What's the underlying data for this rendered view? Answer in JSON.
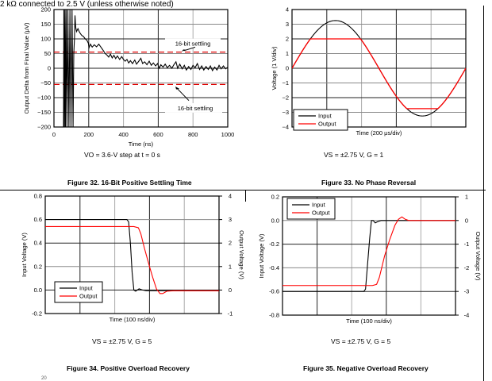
{
  "page": {
    "header_text": "2 kΩ connected to 2.5 V (unless otherwise noted)",
    "page_number": "20",
    "colors": {
      "input": "#000000",
      "output": "#ff0000",
      "limit": "#e00000",
      "grid": "#999999"
    }
  },
  "figures": [
    {
      "caption": "Figure 32. 16-Bit Positive Settling Time",
      "condition": "VO = 3.6-V step at t = 0 s"
    },
    {
      "caption": "Figure 33. No Phase Reversal",
      "condition": "VS = ±2.75 V, G = 1"
    },
    {
      "caption": "Figure 34. Positive Overload Recovery",
      "condition": "VS = ±2.75 V, G = 5"
    },
    {
      "caption": "Figure 35. Negative Overload Recovery",
      "condition": "VS = ±2.75 V, G = 5"
    }
  ],
  "chart_data": [
    {
      "type": "line",
      "xlabel": "Time (ns)",
      "ylabel": "Output Delta from Final Value (μV)",
      "xlim": [
        0,
        1000
      ],
      "ylim": [
        -200,
        200
      ],
      "xticks": [
        "0",
        "200",
        "400",
        "600",
        "800",
        "1000"
      ],
      "yticks": [
        "200",
        "150",
        "100",
        "50",
        "0",
        "−50",
        "−100",
        "−150",
        "−200"
      ],
      "grid": true,
      "annotations": [
        {
          "text": "16-bit settling",
          "y": 55
        },
        {
          "text": "16-bit settling",
          "y": -55
        }
      ],
      "limit_lines": [
        55,
        -55
      ],
      "series": [
        {
          "color": "#000000",
          "points": [
            [
              55,
              -200
            ],
            [
              57,
              200
            ],
            [
              60,
              -200
            ],
            [
              63,
              200
            ],
            [
              66,
              -200
            ],
            [
              70,
              200
            ],
            [
              75,
              -200
            ],
            [
              80,
              200
            ],
            [
              86,
              -200
            ],
            [
              92,
              200
            ],
            [
              98,
              -200
            ],
            [
              104,
              200
            ],
            [
              110,
              -200
            ],
            [
              114,
              50
            ],
            [
              118,
              100
            ],
            [
              121,
              180
            ],
            [
              125,
              140
            ],
            [
              130,
              125
            ],
            [
              138,
              135
            ],
            [
              145,
              125
            ],
            [
              152,
              118
            ],
            [
              160,
              112
            ],
            [
              170,
              108
            ],
            [
              180,
              100
            ],
            [
              190,
              95
            ],
            [
              198,
              85
            ],
            [
              202,
              70
            ],
            [
              210,
              82
            ],
            [
              220,
              72
            ],
            [
              232,
              80
            ],
            [
              245,
              73
            ],
            [
              258,
              82
            ],
            [
              270,
              72
            ],
            [
              282,
              62
            ],
            [
              295,
              50
            ],
            [
              305,
              45
            ],
            [
              315,
              38
            ],
            [
              325,
              48
            ],
            [
              335,
              35
            ],
            [
              345,
              44
            ],
            [
              355,
              33
            ],
            [
              365,
              42
            ],
            [
              378,
              30
            ],
            [
              390,
              40
            ],
            [
              400,
              30
            ],
            [
              410,
              24
            ],
            [
              420,
              30
            ],
            [
              430,
              18
            ],
            [
              440,
              26
            ],
            [
              452,
              16
            ],
            [
              465,
              28
            ],
            [
              475,
              14
            ],
            [
              488,
              24
            ],
            [
              500,
              34
            ],
            [
              510,
              16
            ],
            [
              522,
              22
            ],
            [
              535,
              12
            ],
            [
              548,
              24
            ],
            [
              560,
              10
            ],
            [
              572,
              18
            ],
            [
              585,
              8
            ],
            [
              596,
              16
            ],
            [
              606,
              0
            ],
            [
              615,
              12
            ],
            [
              628,
              4
            ],
            [
              640,
              14
            ],
            [
              652,
              2
            ],
            [
              665,
              10
            ],
            [
              678,
              0
            ],
            [
              690,
              12
            ],
            [
              702,
              22
            ],
            [
              712,
              0
            ],
            [
              724,
              14
            ],
            [
              738,
              -2
            ],
            [
              750,
              10
            ],
            [
              762,
              -6
            ],
            [
              775,
              6
            ],
            [
              788,
              -4
            ],
            [
              800,
              10
            ],
            [
              812,
              2
            ],
            [
              825,
              16
            ],
            [
              838,
              -4
            ],
            [
              850,
              8
            ],
            [
              862,
              -6
            ],
            [
              875,
              6
            ],
            [
              888,
              -4
            ],
            [
              900,
              8
            ],
            [
              912,
              -8
            ],
            [
              925,
              4
            ],
            [
              938,
              -6
            ],
            [
              950,
              10
            ],
            [
              962,
              -2
            ],
            [
              975,
              8
            ],
            [
              988,
              -2
            ],
            [
              1000,
              4
            ]
          ]
        }
      ]
    },
    {
      "type": "line",
      "xlabel": "Time (200 μs/div)",
      "ylabel": "Voltage (1 V/div)",
      "xlim": [
        0,
        5
      ],
      "ylim": [
        -4,
        4
      ],
      "yticks": [
        "4",
        "3",
        "2",
        "1",
        "0",
        "−1",
        "−2",
        "−3",
        "−4"
      ],
      "grid": true,
      "legend": {
        "placement": "bottom-left",
        "entries": [
          "Input",
          "Output"
        ]
      },
      "series": [
        {
          "name": "Input",
          "color": "#000000",
          "function": "sine",
          "amplitude": 3.25,
          "period_div": 5
        },
        {
          "name": "Output",
          "color": "#ff0000",
          "function": "sine",
          "amplitude": 3.25,
          "period_div": 5,
          "clip_high": 2.0,
          "clip_low": -2.75
        }
      ]
    },
    {
      "type": "line",
      "xlabel": "Time (100 ns/div)",
      "ylabel": "Input Voltage (V)",
      "ylabel_right": "Output Voltage (V)",
      "xlim": [
        0,
        5
      ],
      "ylim": [
        -0.2,
        0.8
      ],
      "ylim_right": [
        -1,
        4
      ],
      "yticks": [
        "0.8",
        "0.6",
        "0.4",
        "0.2",
        "0.0",
        "-0.2"
      ],
      "yticks_right": [
        "4",
        "3",
        "2",
        "1",
        "0",
        "-1"
      ],
      "grid": true,
      "legend": {
        "placement": "bottom-left",
        "entries": [
          "Input",
          "Output"
        ]
      },
      "series": [
        {
          "name": "Input",
          "color": "#000000",
          "axis": "left",
          "points": [
            [
              0,
              0.6
            ],
            [
              2.35,
              0.6
            ],
            [
              2.4,
              0.58
            ],
            [
              2.45,
              0.4
            ],
            [
              2.5,
              0.15
            ],
            [
              2.55,
              0.0
            ],
            [
              2.6,
              -0.01
            ],
            [
              2.7,
              0.01
            ],
            [
              2.8,
              0.0
            ],
            [
              2.9,
              -0.005
            ],
            [
              5,
              -0.005
            ]
          ]
        },
        {
          "name": "Output",
          "color": "#ff0000",
          "axis": "right",
          "points": [
            [
              0,
              2.7
            ],
            [
              2.55,
              2.7
            ],
            [
              2.68,
              2.65
            ],
            [
              2.75,
              2.4
            ],
            [
              2.85,
              1.8
            ],
            [
              3.0,
              1.0
            ],
            [
              3.1,
              0.5
            ],
            [
              3.2,
              0.05
            ],
            [
              3.3,
              -0.15
            ],
            [
              3.38,
              -0.15
            ],
            [
              3.5,
              -0.05
            ],
            [
              3.7,
              -0.03
            ],
            [
              5,
              -0.03
            ]
          ]
        }
      ]
    },
    {
      "type": "line",
      "xlabel": "Time (100 ns/div)",
      "ylabel": "Input Voltage (V)",
      "ylabel_right": "Output Voltage (V)",
      "xlim": [
        0,
        5
      ],
      "ylim": [
        -0.8,
        0.2
      ],
      "ylim_right": [
        -4,
        1
      ],
      "yticks": [
        "0.2",
        "0.0",
        "-0.2",
        "-0.4",
        "-0.6",
        "-0.8"
      ],
      "yticks_right": [
        "1",
        "0",
        "-1",
        "-2",
        "-3",
        "-4"
      ],
      "grid": true,
      "legend": {
        "placement": "top-left",
        "entries": [
          "Input",
          "Output"
        ]
      },
      "series": [
        {
          "name": "Input",
          "color": "#000000",
          "axis": "left",
          "points": [
            [
              0,
              -0.6
            ],
            [
              2.35,
              -0.6
            ],
            [
              2.4,
              -0.58
            ],
            [
              2.45,
              -0.4
            ],
            [
              2.52,
              -0.15
            ],
            [
              2.57,
              0.0
            ],
            [
              2.62,
              0.0
            ],
            [
              2.68,
              -0.02
            ],
            [
              2.75,
              -0.01
            ],
            [
              2.85,
              0.0
            ],
            [
              5,
              0.0
            ]
          ]
        },
        {
          "name": "Output",
          "color": "#ff0000",
          "axis": "right",
          "points": [
            [
              0,
              -2.75
            ],
            [
              2.6,
              -2.75
            ],
            [
              2.72,
              -2.7
            ],
            [
              2.8,
              -2.4
            ],
            [
              2.95,
              -1.5
            ],
            [
              3.1,
              -0.8
            ],
            [
              3.25,
              -0.2
            ],
            [
              3.35,
              0.05
            ],
            [
              3.45,
              0.15
            ],
            [
              3.55,
              0.05
            ],
            [
              3.65,
              0.0
            ],
            [
              5,
              0.0
            ]
          ]
        }
      ]
    }
  ]
}
